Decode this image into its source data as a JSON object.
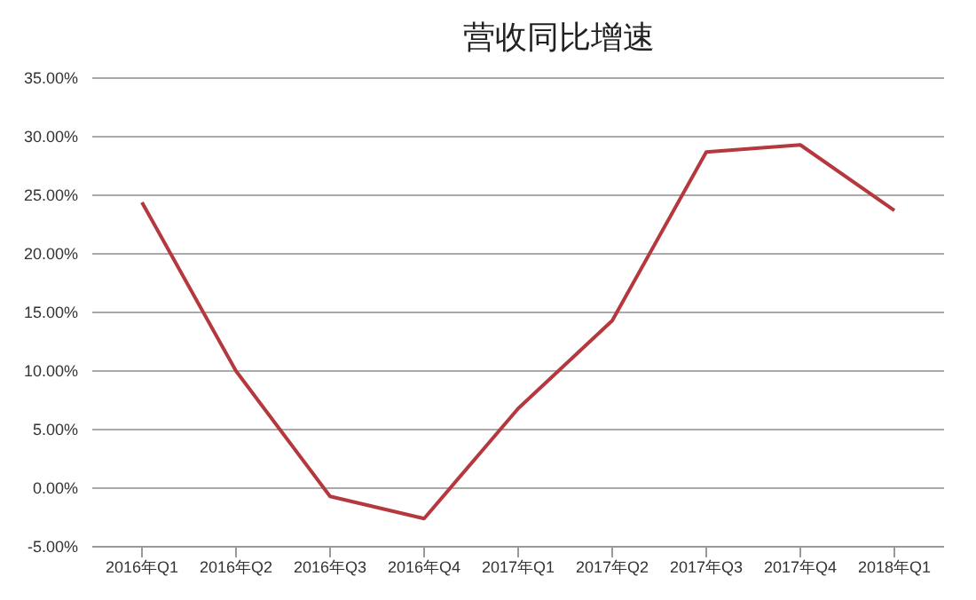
{
  "chart_data": {
    "type": "line",
    "title": "营收同比增速",
    "categories": [
      "2016年Q1",
      "2016年Q2",
      "2016年Q3",
      "2016年Q4",
      "2017年Q1",
      "2017年Q2",
      "2017年Q3",
      "2017年Q4",
      "2018年Q1"
    ],
    "series": [
      {
        "color": "#b5383e",
        "values": [
          24.4,
          10.0,
          -0.7,
          -2.6,
          6.8,
          14.3,
          28.7,
          29.3,
          23.7
        ]
      }
    ],
    "ylim": [
      -5,
      35
    ],
    "yticks": [
      {
        "value": -5,
        "label": "-5.00%"
      },
      {
        "value": 0,
        "label": "0.00%"
      },
      {
        "value": 5,
        "label": "5.00%"
      },
      {
        "value": 10,
        "label": "10.00%"
      },
      {
        "value": 15,
        "label": "15.00%"
      },
      {
        "value": 20,
        "label": "20.00%"
      },
      {
        "value": 25,
        "label": "25.00%"
      },
      {
        "value": 30,
        "label": "30.00%"
      },
      {
        "value": 35,
        "label": "35.00%"
      }
    ],
    "grid": "y",
    "marker": "none",
    "line_style": "solid"
  }
}
